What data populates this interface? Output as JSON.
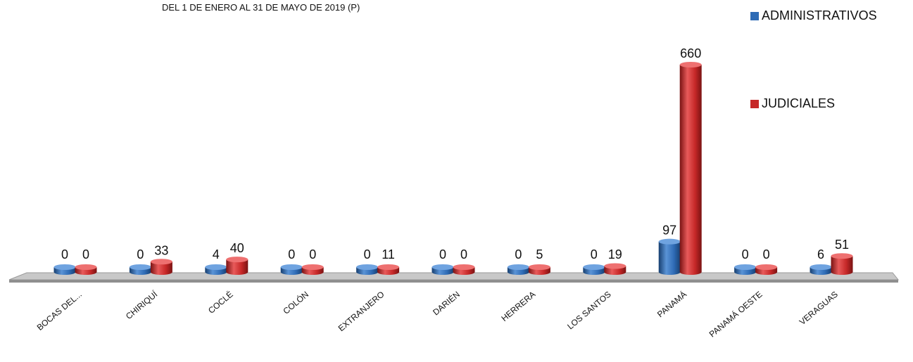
{
  "subtitle": "DEL 1 DE ENERO  AL 31 DE MAYO DE 2019 (P)",
  "chart_data": {
    "type": "bar",
    "categories": [
      "BOCAS DEL...",
      "CHIRIQUÍ",
      "COCLÉ",
      "COLÓN",
      "EXTRANJERO",
      "DARIÉN",
      "HERRERA",
      "LOS SANTOS",
      "PANAMÁ",
      "PANAMÁ OESTE",
      "VERAGUAS"
    ],
    "series": [
      {
        "name": "ADMINISTRATIVOS",
        "color": "#2e6bb5",
        "values": [
          0,
          0,
          4,
          0,
          0,
          0,
          0,
          0,
          97,
          0,
          6
        ]
      },
      {
        "name": "JUDICIALES",
        "color": "#c62828",
        "values": [
          0,
          33,
          40,
          0,
          11,
          0,
          5,
          19,
          660,
          0,
          51
        ]
      }
    ],
    "title": "",
    "xlabel": "",
    "ylabel": "",
    "ylim": [
      0,
      660
    ],
    "grid": false,
    "legend_position": "right",
    "style": "3d-cylinder"
  }
}
